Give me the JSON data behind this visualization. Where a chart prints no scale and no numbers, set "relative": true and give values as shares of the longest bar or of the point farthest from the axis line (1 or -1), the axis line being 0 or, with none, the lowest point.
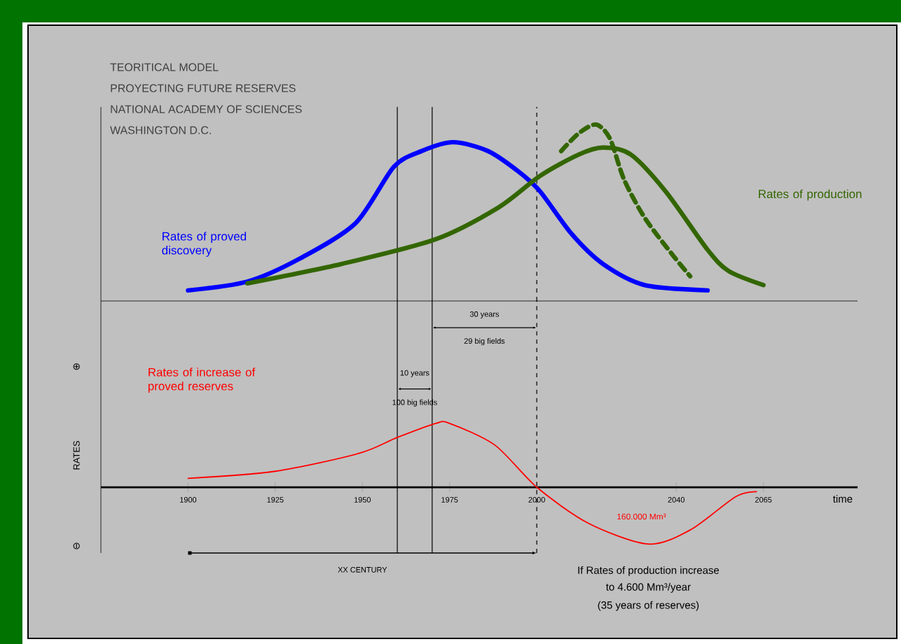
{
  "chart_data": [
    {
      "type": "line",
      "title": "TEORITICAL MODEL",
      "subtitle": "PROYECTING FUTURE RESERVES",
      "relative": true,
      "xlim": [
        1875,
        2092
      ],
      "tick_labels": false,
      "annotations": [
        "NATIONAL ACADEMY OF SCIENCES",
        "WASHINGTON  D.C."
      ],
      "ref_lines": [
        {
          "axis": "x",
          "value": 1960
        },
        {
          "axis": "x",
          "value": 1970
        },
        {
          "axis": "x",
          "value": 2000,
          "line_style": "dashed"
        }
      ],
      "series": [
        {
          "name": "Rates of proved discovery",
          "color": "#0000ff",
          "x": [
            1900,
            1917,
            1932,
            1948,
            1959,
            1967,
            1976,
            1986,
            1995,
            2001,
            2010,
            2019,
            2031,
            2049
          ],
          "values": [
            0.06,
            0.11,
            0.24,
            0.44,
            0.76,
            0.85,
            0.9,
            0.85,
            0.73,
            0.62,
            0.38,
            0.21,
            0.09,
            0.06
          ]
        },
        {
          "name": "Rates of production",
          "color": "#336600",
          "x": [
            1917,
            1944,
            1971,
            1989,
            2001,
            2012,
            2019,
            2027,
            2037,
            2049,
            2055,
            2065
          ],
          "values": [
            0.1,
            0.21,
            0.35,
            0.53,
            0.71,
            0.83,
            0.87,
            0.83,
            0.62,
            0.29,
            0.17,
            0.09
          ]
        },
        {
          "color": "#336600",
          "line_style": "dashed",
          "x": [
            2007,
            2012,
            2017,
            2021,
            2025,
            2031,
            2039,
            2044
          ],
          "values": [
            0.85,
            0.95,
            1.0,
            0.92,
            0.69,
            0.47,
            0.26,
            0.14
          ]
        }
      ]
    },
    {
      "type": "line",
      "relative": true,
      "xlabel": "time",
      "ylabel": "RATES",
      "xlim": [
        1875,
        2092
      ],
      "xticks": [
        1900,
        1925,
        1950,
        1975,
        2000,
        2040,
        2065
      ],
      "annotations": [
        "30 years",
        "29 big fields",
        "10 years",
        "100 big fields",
        "160.000 Mm³",
        "XX CENTURY",
        "If Rates of production increase",
        "to 4.600 Mm³/year",
        "(35 years of reserves)",
        "⊕",
        "⊖"
      ],
      "ref_lines": [
        {
          "axis": "x",
          "value": 1960
        },
        {
          "axis": "x",
          "value": 1970
        },
        {
          "axis": "x",
          "value": 2000,
          "line_style": "dashed"
        }
      ],
      "series": [
        {
          "name": "Rates of increase of proved reserves",
          "color": "#ff0000",
          "x": [
            1900,
            1925,
            1949,
            1960,
            1971,
            1975,
            1988,
            2000,
            2015,
            2032,
            2044,
            2057,
            2063
          ],
          "values": [
            0.14,
            0.25,
            0.53,
            0.78,
            1,
            1,
            0.66,
            0,
            -0.57,
            -0.89,
            -0.67,
            -0.15,
            -0.07
          ]
        }
      ]
    }
  ]
}
